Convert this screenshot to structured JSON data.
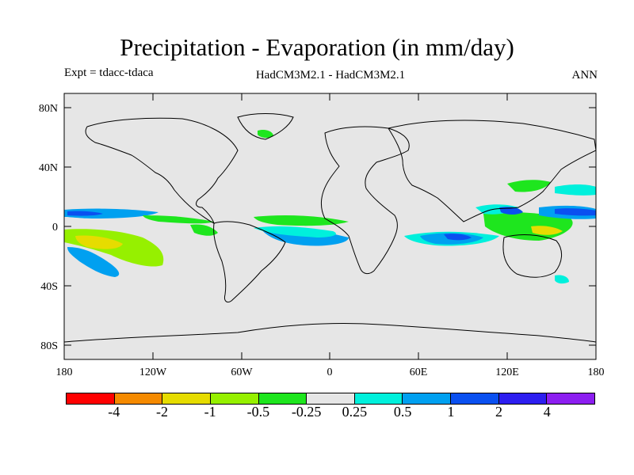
{
  "title": "Precipitation - Evaporation (in mm/day)",
  "experiment": "Expt = tdacc-tdaca",
  "models": "HadCM3M2.1 - HadCM3M2.1",
  "season": "ANN",
  "map": {
    "lat_ticks": [
      "80N",
      "40N",
      "0",
      "40S",
      "80S"
    ],
    "lon_ticks": [
      "180",
      "120W",
      "60W",
      "0",
      "60E",
      "120E",
      "180"
    ],
    "background_color": "#e6e6e6"
  },
  "colorbar": {
    "colors": [
      "#ff0000",
      "#f58a00",
      "#e6dc00",
      "#96f000",
      "#1ee61e",
      "#e6e6e6",
      "#00f0dc",
      "#00a0f0",
      "#0a50f0",
      "#2d1ef0",
      "#8c1ef0"
    ],
    "labels": [
      "-4",
      "-2",
      "-1",
      "-0.5",
      "-0.25",
      "0.25",
      "0.5",
      "1",
      "2",
      "4"
    ]
  }
}
